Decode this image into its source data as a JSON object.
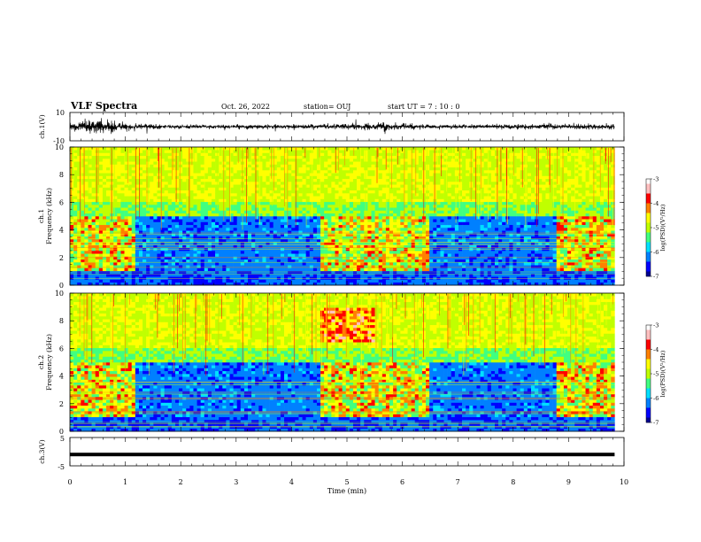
{
  "header": {
    "title": "VLF Spectra",
    "date": "Oct. 26, 2022",
    "station": "station= OUJ",
    "start": "start  UT =   7 : 10 : 0"
  },
  "chart_data": [
    {
      "type": "line",
      "name": "ch1-waveform",
      "ylabel": "ch.1(V)",
      "ylim": [
        -10,
        10
      ],
      "yticks": [
        "10",
        "-10"
      ],
      "xlim": [
        0,
        10
      ],
      "amplitude_by_minute": [
        [
          0,
          3
        ],
        [
          0.4,
          6
        ],
        [
          0.7,
          5
        ],
        [
          1.2,
          2
        ],
        [
          2,
          1.5
        ],
        [
          4.5,
          1.8
        ],
        [
          5.8,
          3
        ],
        [
          6.5,
          1.5
        ],
        [
          8.8,
          2
        ],
        [
          9.8,
          2
        ]
      ]
    },
    {
      "type": "heatmap",
      "name": "ch1-spectrogram",
      "ylabel": "ch.1\nFrequency (kHz)",
      "ylim": [
        0,
        10
      ],
      "yticks": [
        "0",
        "2",
        "4",
        "6",
        "8",
        "10"
      ],
      "xlim": [
        0,
        10
      ],
      "data_end_min": 9.83,
      "colorbar": {
        "label": "log(PSD)(V²/Hz)",
        "range": [
          -7,
          -3
        ],
        "ticks": [
          "-3",
          "-4",
          "-5",
          "-6",
          "-7"
        ]
      },
      "active_intervals_min": [
        [
          0,
          1.2
        ],
        [
          4.55,
          6.5
        ],
        [
          8.8,
          9.83
        ]
      ]
    },
    {
      "type": "heatmap",
      "name": "ch2-spectrogram",
      "ylabel": "ch.2\nFrequency (kHz)",
      "ylim": [
        0,
        10
      ],
      "yticks": [
        "0",
        "2",
        "4",
        "6",
        "8",
        "10"
      ],
      "xlim": [
        0,
        10
      ],
      "data_end_min": 9.83,
      "colorbar": {
        "label": "log(PSD)(V²/Hz)",
        "range": [
          -7,
          -3
        ],
        "ticks": [
          "-3",
          "-4",
          "-5",
          "-6",
          "-7"
        ]
      },
      "active_intervals_min": [
        [
          0,
          1.2
        ],
        [
          4.55,
          6.5
        ],
        [
          8.8,
          9.83
        ]
      ]
    },
    {
      "type": "line",
      "name": "ch3-waveform",
      "ylabel": "ch.3(V)",
      "ylim": [
        -5,
        5
      ],
      "yticks": [
        "5",
        "-5"
      ],
      "xlim": [
        0,
        10
      ],
      "level_V": -1
    }
  ],
  "xaxis": {
    "label": "Time  (min)",
    "ticks": [
      "0",
      "1",
      "2",
      "3",
      "4",
      "5",
      "6",
      "7",
      "8",
      "9",
      "10"
    ]
  },
  "colors": {
    "colormap": [
      "#000090",
      "#0000ff",
      "#0080ff",
      "#00e0ff",
      "#40ff80",
      "#c0ff00",
      "#ffff00",
      "#ff8000",
      "#ff0000",
      "#ffc0c0",
      "#ffffff"
    ]
  }
}
